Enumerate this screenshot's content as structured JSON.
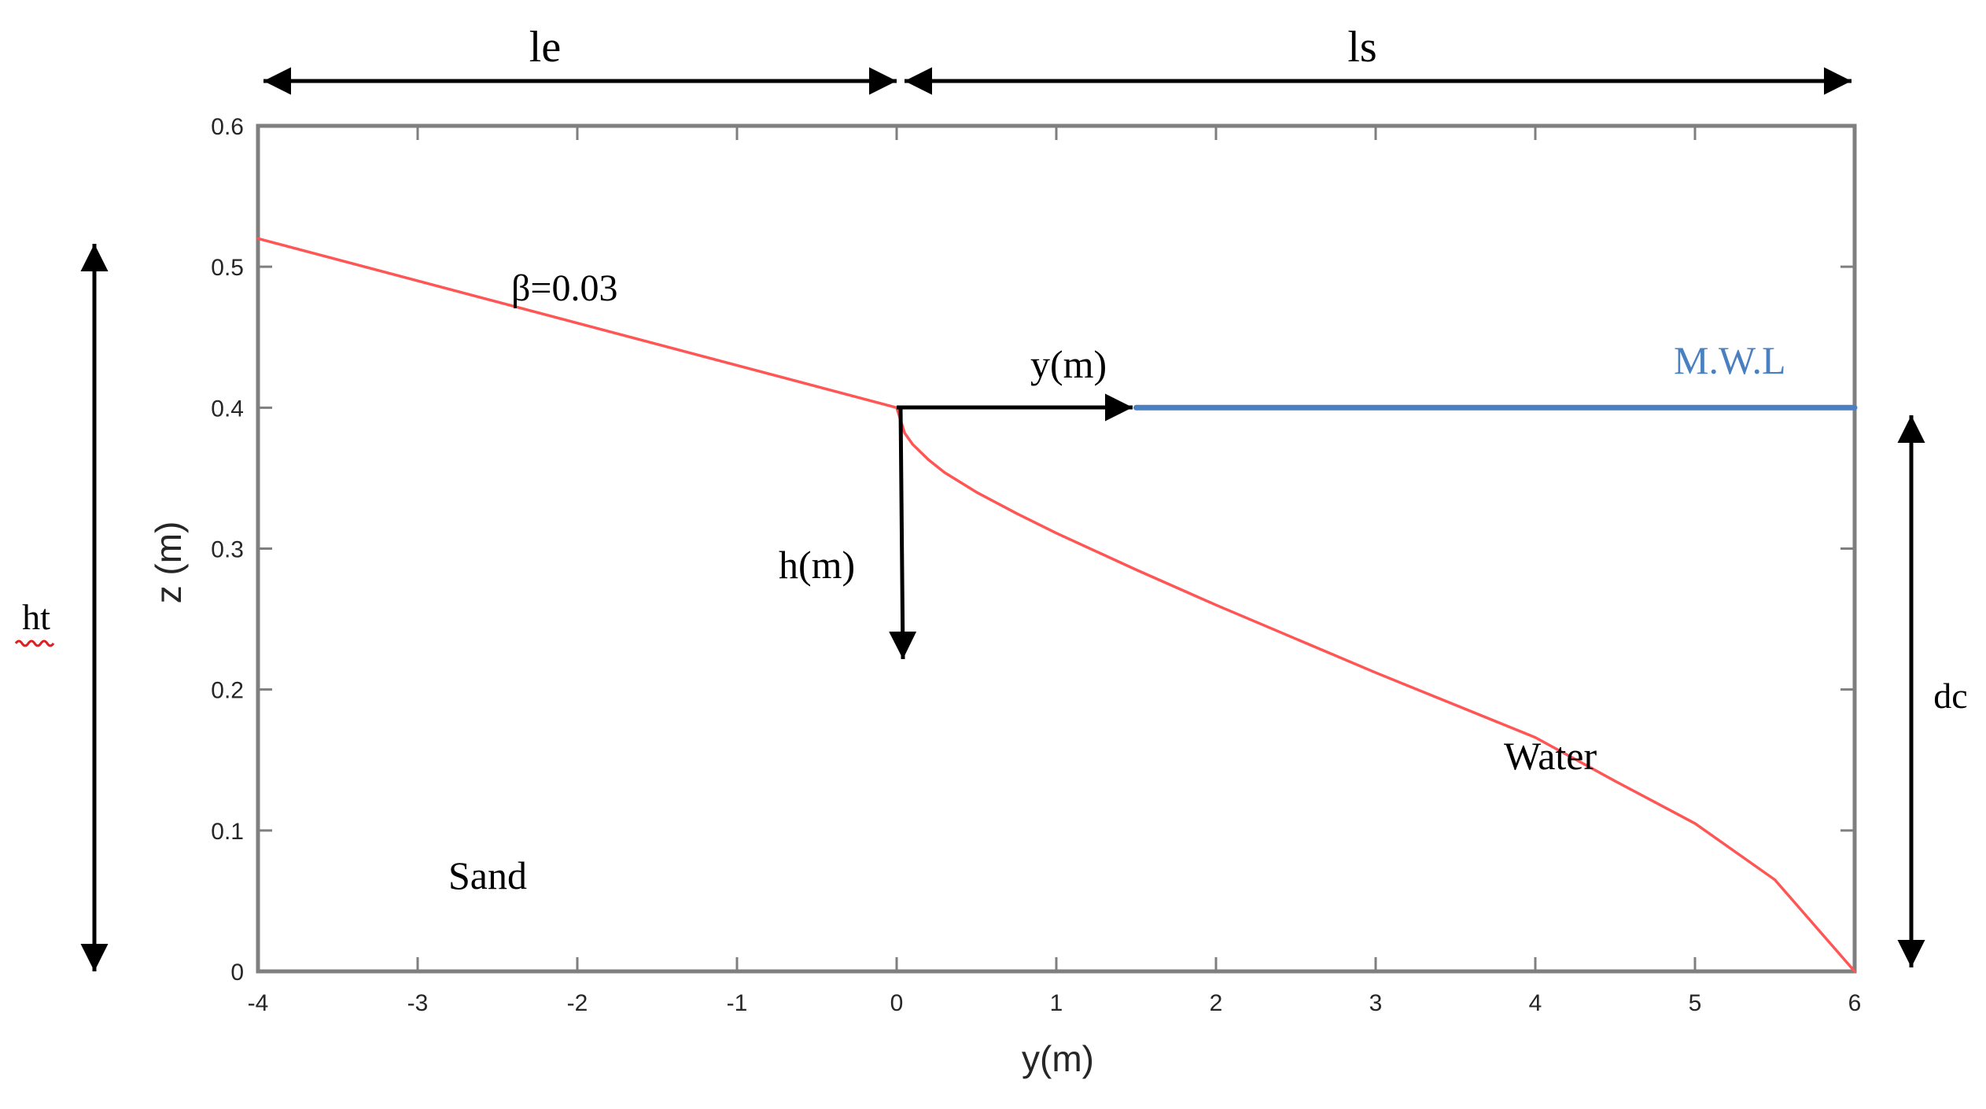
{
  "chart_data": {
    "type": "line",
    "xlabel": "y(m)",
    "ylabel": "z (m)",
    "xlim": [
      -4,
      6
    ],
    "ylim": [
      0,
      0.6
    ],
    "xticks": [
      -4,
      -3,
      -2,
      -1,
      0,
      1,
      2,
      3,
      4,
      5,
      6
    ],
    "yticks": [
      0,
      0.1,
      0.2,
      0.3,
      0.4,
      0.5,
      0.6
    ],
    "xtick_labels": [
      "-4",
      "-3",
      "-2",
      "-1",
      "0",
      "1",
      "2",
      "3",
      "4",
      "5",
      "6"
    ],
    "ytick_labels": [
      "0",
      "0.1",
      "0.2",
      "0.3",
      "0.4",
      "0.5",
      "0.6"
    ],
    "grid": false,
    "series": [
      {
        "color": "#ff5555",
        "x": [
          -4,
          0
        ],
        "y": [
          0.52,
          0.4
        ]
      },
      {
        "color": "#ff5555",
        "x": [
          0,
          0.05,
          0.1,
          0.2,
          0.3,
          0.5,
          0.75,
          1,
          1.5,
          2,
          2.5,
          3,
          3.5,
          4,
          4.5,
          5,
          5.5,
          6
        ],
        "y": [
          0.4,
          0.382,
          0.374,
          0.363,
          0.354,
          0.34,
          0.325,
          0.311,
          0.285,
          0.26,
          0.236,
          0.212,
          0.189,
          0.166,
          0.135,
          0.105,
          0.065,
          0.0
        ]
      },
      {
        "color": "#4a7fc1",
        "x": [
          1.5,
          6
        ],
        "y": [
          0.4,
          0.4
        ]
      }
    ],
    "annotations": {
      "slope_label": "β=0.03",
      "y_axis_arrow_label": "y(m)",
      "h_axis_arrow_label": "h(m)",
      "mwl_label": "M.W.L",
      "water_label": "Water",
      "sand_label": "Sand",
      "le_label": "le",
      "ls_label": "ls",
      "ht_label": "ht",
      "dc_label": "dc"
    },
    "colors": {
      "profile": "#ff5555",
      "mwl": "#4a7fc1",
      "axes": "#7f7f7f",
      "arrows": "#000000"
    }
  }
}
